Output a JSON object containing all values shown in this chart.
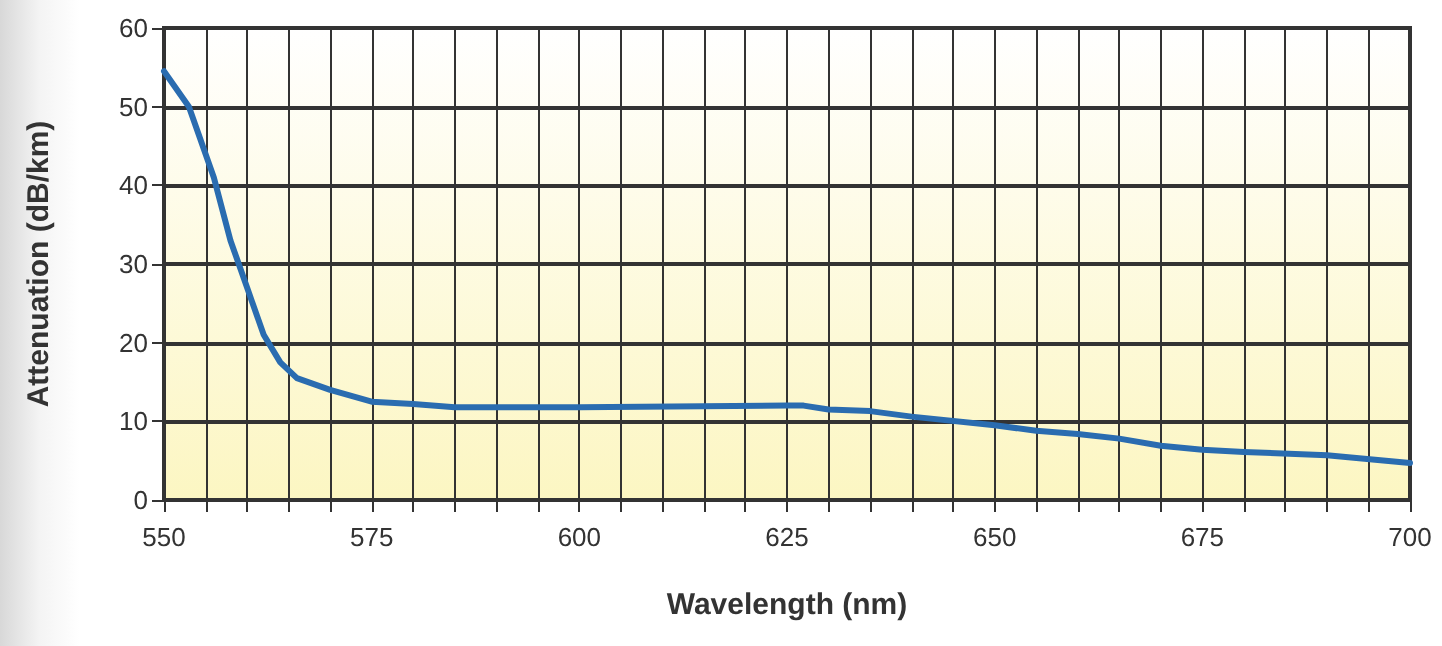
{
  "chart_data": {
    "type": "line",
    "xlabel": "Wavelength (nm)",
    "ylabel": "Attenuation (dB/km)",
    "series": [
      {
        "color": "#2a6cb0",
        "x": [
          550,
          553,
          556,
          558,
          560,
          562,
          564,
          566,
          570,
          575,
          580,
          585,
          600,
          625,
          627,
          630,
          635,
          640,
          650,
          655,
          660,
          665,
          670,
          675,
          680,
          690,
          700
        ],
        "values": [
          54.5,
          50,
          41,
          33,
          27,
          21,
          17.5,
          15.5,
          14,
          12.5,
          12.2,
          11.8,
          11.8,
          12,
          12,
          11.5,
          11.3,
          10.6,
          9.5,
          8.8,
          8.4,
          7.8,
          6.9,
          6.4,
          6.1,
          5.7,
          4.7
        ]
      }
    ],
    "xlim": [
      550,
      700
    ],
    "xticks": [
      550,
      {
        "value": 555,
        "label": null
      },
      {
        "value": 560,
        "label": null
      },
      {
        "value": 565,
        "label": null
      },
      {
        "value": 570,
        "label": null
      },
      575,
      {
        "value": 580,
        "label": null
      },
      {
        "value": 585,
        "label": null
      },
      {
        "value": 590,
        "label": null
      },
      {
        "value": 595,
        "label": null
      },
      600,
      {
        "value": 605,
        "label": null
      },
      {
        "value": 610,
        "label": null
      },
      {
        "value": 615,
        "label": null
      },
      {
        "value": 620,
        "label": null
      },
      625,
      {
        "value": 630,
        "label": null
      },
      {
        "value": 635,
        "label": null
      },
      {
        "value": 640,
        "label": null
      },
      {
        "value": 645,
        "label": null
      },
      650,
      {
        "value": 655,
        "label": null
      },
      {
        "value": 660,
        "label": null
      },
      {
        "value": 665,
        "label": null
      },
      {
        "value": 670,
        "label": null
      },
      675,
      {
        "value": 680,
        "label": null
      },
      {
        "value": 685,
        "label": null
      },
      {
        "value": 690,
        "label": null
      },
      {
        "value": 695,
        "label": null
      },
      700
    ],
    "ylim": [
      0,
      60
    ],
    "yticks": [
      0,
      10,
      20,
      30,
      40,
      50,
      60
    ],
    "grid": true,
    "marker": "none",
    "line_style": "solid"
  }
}
